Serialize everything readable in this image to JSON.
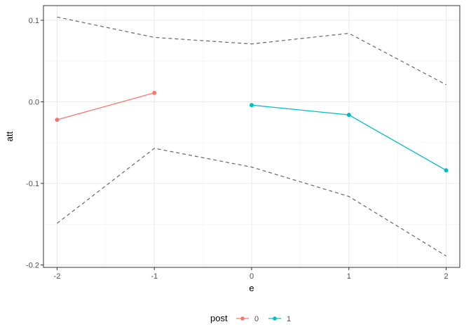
{
  "chart_data": {
    "type": "line",
    "xlabel": "e",
    "ylabel": "att",
    "xlim": [
      -2.14,
      2.14
    ],
    "ylim": [
      -0.203,
      0.118
    ],
    "x_ticks": [
      -2,
      -1,
      0,
      1,
      2
    ],
    "x_tick_labels": [
      "-2",
      "-1",
      "0",
      "1",
      "2"
    ],
    "y_ticks": [
      0.1,
      0.0,
      -0.1,
      -0.2
    ],
    "y_tick_labels": [
      "0.1",
      "0.0",
      "-0.1",
      "-0.2"
    ],
    "grid": true,
    "legend": {
      "title": "post",
      "position": "bottom",
      "entries": [
        "0",
        "1"
      ]
    },
    "series": [
      {
        "name": "0",
        "color": "#F8766D",
        "x": [
          -2,
          -1
        ],
        "y": [
          -0.022,
          0.011
        ]
      },
      {
        "name": "1",
        "color": "#00BFC4",
        "x": [
          0,
          1,
          2
        ],
        "y": [
          -0.004,
          -0.016,
          -0.084
        ]
      }
    ],
    "bands": {
      "style": "dashed",
      "color": "#666666",
      "x": [
        -2,
        -1,
        0,
        1,
        2
      ],
      "upper": [
        0.104,
        0.079,
        0.071,
        0.084,
        0.021
      ],
      "lower": [
        -0.149,
        -0.057,
        -0.08,
        -0.116,
        -0.189
      ]
    }
  }
}
